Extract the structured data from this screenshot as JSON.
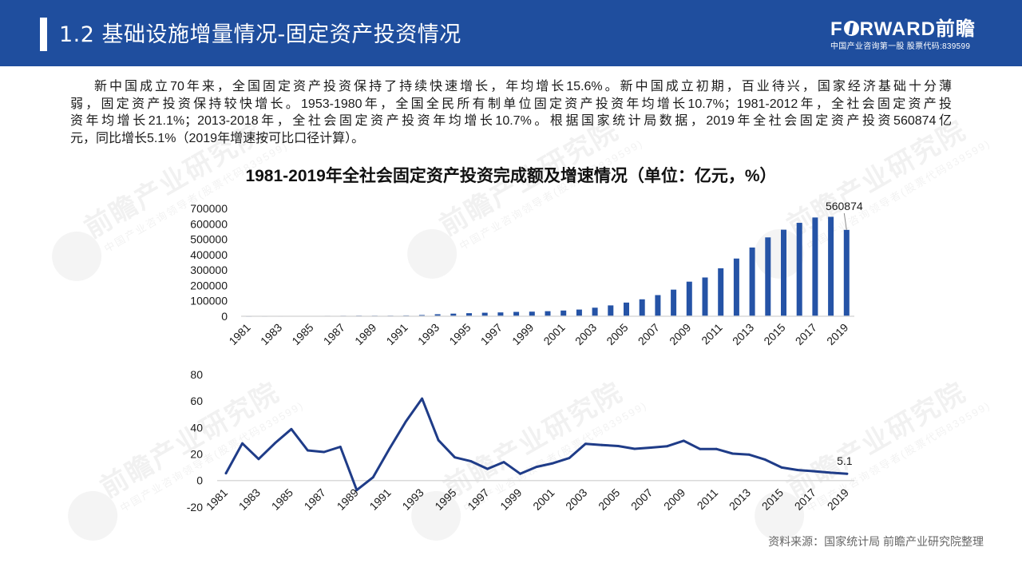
{
  "header": {
    "title": "1.2 基础设施增量情况-固定资产投资情况",
    "logo": {
      "brand_f": "F",
      "brand_rest": "RWARD",
      "brand_cn": "前瞻",
      "tagline": "中国产业咨询第一股 股票代码:839599"
    }
  },
  "body": {
    "paragraph_lines": [
      "新中国成立70年来，全国固定资产投资保持了持续快速增长，年均增长15.6%。新中国成立初期，百业待兴，国家经济基础十分薄",
      "弱，固定资产投资保持较快增长。1953-1980年，全国全民所有制单位固定资产投资年均增长10.7%；1981-2012年，全社会固定资产投",
      "资年均增长21.1%；2013-2018年，全社会固定资产投资年均增长10.7%。根据国家统计局数据，2019年全社会固定资产投资560874亿",
      "元，同比增长5.1%（2019年增速按可比口径计算）。"
    ]
  },
  "watermark": {
    "main": "前瞻产业研究院",
    "sub": "中国产业咨询领导者(股票代码839599)"
  },
  "footer": {
    "source": "资料来源：国家统计局 前瞻产业研究院整理"
  },
  "colors": {
    "header_bg": "#1f4e9e",
    "bar": "#2553a6",
    "line": "#1f3c88",
    "axis": "#d9d9d9"
  },
  "chart_data": [
    {
      "type": "bar",
      "title": "1981-2019年全社会固定资产投资完成额及增速情况（单位：亿元，%）",
      "series_name": "全社会固定资产投资完成额（亿元）",
      "categories": [
        "1981",
        "1982",
        "1983",
        "1984",
        "1985",
        "1986",
        "1987",
        "1988",
        "1989",
        "1990",
        "1991",
        "1992",
        "1993",
        "1994",
        "1995",
        "1996",
        "1997",
        "1998",
        "1999",
        "2000",
        "2001",
        "2002",
        "2003",
        "2004",
        "2005",
        "2006",
        "2007",
        "2008",
        "2009",
        "2010",
        "2011",
        "2012",
        "2013",
        "2014",
        "2015",
        "2016",
        "2017",
        "2018",
        "2019"
      ],
      "values": [
        961,
        1230,
        1430,
        1833,
        2543,
        3121,
        3792,
        4754,
        4410,
        4517,
        5595,
        8080,
        13072,
        17042,
        20019,
        22914,
        24941,
        28406,
        29855,
        32918,
        37214,
        43500,
        55567,
        70477,
        88774,
        109998,
        137324,
        172828,
        224599,
        251684,
        311485,
        374695,
        446294,
        512021,
        562000,
        606466,
        641238,
        645675,
        560874
      ],
      "x_tick_labels": [
        "1981",
        "1983",
        "1985",
        "1987",
        "1989",
        "1991",
        "1993",
        "1995",
        "1997",
        "1999",
        "2001",
        "2003",
        "2005",
        "2007",
        "2009",
        "2011",
        "2013",
        "2015",
        "2017",
        "2019"
      ],
      "yticks": [
        0,
        100000,
        200000,
        300000,
        400000,
        500000,
        600000,
        700000
      ],
      "ylim": [
        0,
        700000
      ],
      "xlabel": "",
      "ylabel": "",
      "grid": false,
      "legend": "none",
      "data_labels": [
        {
          "category": "2019",
          "text": "560874"
        }
      ]
    },
    {
      "type": "line",
      "title": "",
      "series_name": "增速（%）",
      "categories": [
        "1981",
        "1982",
        "1983",
        "1984",
        "1985",
        "1986",
        "1987",
        "1988",
        "1989",
        "1990",
        "1991",
        "1992",
        "1993",
        "1994",
        "1995",
        "1996",
        "1997",
        "1998",
        "1999",
        "2000",
        "2001",
        "2002",
        "2003",
        "2004",
        "2005",
        "2006",
        "2007",
        "2008",
        "2009",
        "2010",
        "2011",
        "2012",
        "2013",
        "2014",
        "2015",
        "2016",
        "2017",
        "2018",
        "2019"
      ],
      "values": [
        5.5,
        28.0,
        16.2,
        28.2,
        38.8,
        22.7,
        21.5,
        25.4,
        -7.2,
        2.4,
        23.9,
        44.4,
        61.8,
        30.4,
        17.5,
        14.5,
        8.8,
        13.9,
        5.1,
        10.3,
        13.0,
        16.9,
        27.7,
        26.8,
        26.0,
        23.9,
        24.8,
        25.9,
        30.0,
        23.8,
        23.8,
        20.3,
        19.6,
        15.7,
        9.8,
        7.9,
        7.0,
        5.9,
        5.1
      ],
      "x_tick_labels": [
        "1981",
        "1983",
        "1985",
        "1987",
        "1989",
        "1991",
        "1993",
        "1995",
        "1997",
        "1999",
        "2001",
        "2003",
        "2005",
        "2007",
        "2009",
        "2011",
        "2013",
        "2015",
        "2017",
        "2019"
      ],
      "yticks": [
        -20,
        0,
        20,
        40,
        60,
        80
      ],
      "ylim": [
        -20,
        80
      ],
      "xlabel": "",
      "ylabel": "",
      "grid": false,
      "legend": "none",
      "data_labels": [
        {
          "category": "2019",
          "text": "5.1"
        }
      ]
    }
  ]
}
